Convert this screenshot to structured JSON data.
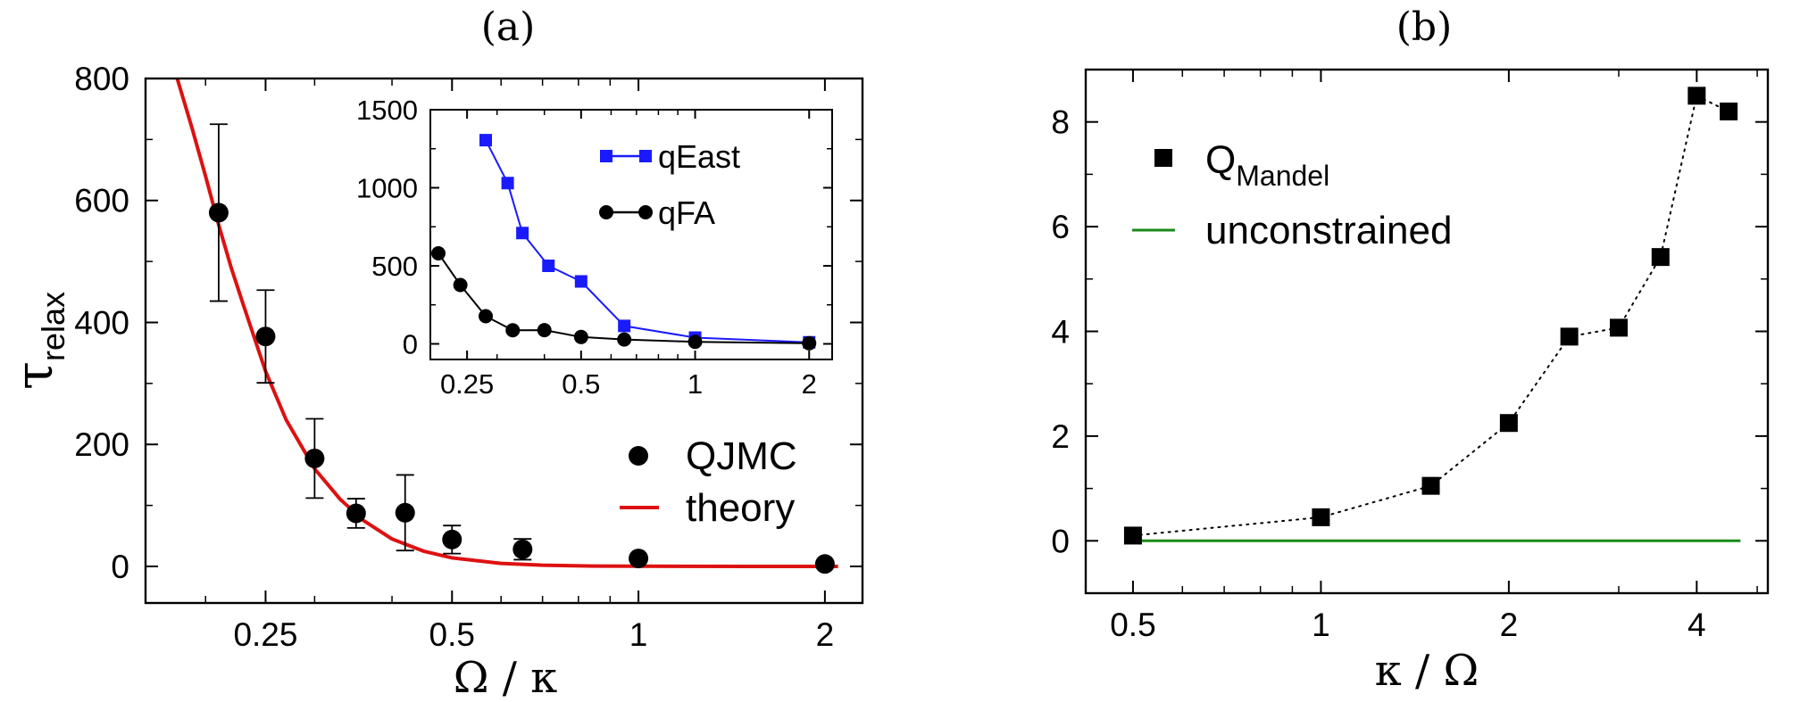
{
  "chart_data": [
    {
      "id": "a",
      "panel_label": "(a)",
      "type": "scatter",
      "x_scale": "log",
      "xlabel": "Ω / κ",
      "ylabel": "τ",
      "ylabel_sub": "relax",
      "xlim": [
        0.16,
        2.3
      ],
      "ylim": [
        -60,
        800
      ],
      "xticks": [
        {
          "value": 0.25,
          "label": "0.25"
        },
        {
          "value": 0.5,
          "label": "0.5"
        },
        {
          "value": 1,
          "label": "1"
        },
        {
          "value": 2,
          "label": "2"
        }
      ],
      "yticks": [
        {
          "value": 0,
          "label": "0"
        },
        {
          "value": 200,
          "label": "200"
        },
        {
          "value": 400,
          "label": "400"
        },
        {
          "value": 600,
          "label": "600"
        },
        {
          "value": 800,
          "label": "800"
        }
      ],
      "legend_position": "lower-right",
      "series": [
        {
          "name": "QJMC",
          "kind": "points-with-errorbars",
          "color": "#000000",
          "points": [
            {
              "x": 0.21,
              "y": 580,
              "err": 145
            },
            {
              "x": 0.25,
              "y": 377,
              "err": 76
            },
            {
              "x": 0.3,
              "y": 177,
              "err": 65
            },
            {
              "x": 0.35,
              "y": 87,
              "err": 24
            },
            {
              "x": 0.42,
              "y": 88,
              "err": 62
            },
            {
              "x": 0.5,
              "y": 44,
              "err": 23
            },
            {
              "x": 0.65,
              "y": 28,
              "err": 17
            },
            {
              "x": 1.0,
              "y": 13,
              "err": 5
            },
            {
              "x": 2.0,
              "y": 4,
              "err": 3
            }
          ]
        },
        {
          "name": "theory",
          "kind": "line",
          "color": "#dd1111",
          "points": [
            {
              "x": 0.18,
              "y": 800
            },
            {
              "x": 0.19,
              "y": 720
            },
            {
              "x": 0.2,
              "y": 640
            },
            {
              "x": 0.21,
              "y": 560
            },
            {
              "x": 0.22,
              "y": 490
            },
            {
              "x": 0.23,
              "y": 430
            },
            {
              "x": 0.25,
              "y": 320
            },
            {
              "x": 0.27,
              "y": 240
            },
            {
              "x": 0.3,
              "y": 160
            },
            {
              "x": 0.33,
              "y": 110
            },
            {
              "x": 0.36,
              "y": 75
            },
            {
              "x": 0.4,
              "y": 45
            },
            {
              "x": 0.45,
              "y": 25
            },
            {
              "x": 0.5,
              "y": 14
            },
            {
              "x": 0.6,
              "y": 5
            },
            {
              "x": 0.7,
              "y": 2
            },
            {
              "x": 0.85,
              "y": 0.5
            },
            {
              "x": 1.0,
              "y": 0.2
            },
            {
              "x": 1.5,
              "y": 0
            },
            {
              "x": 2.1,
              "y": 0
            }
          ]
        }
      ],
      "inset": {
        "type": "line",
        "x_scale": "log",
        "xlim": [
          0.2,
          2.3
        ],
        "ylim": [
          -100,
          1500
        ],
        "xticks": [
          {
            "value": 0.25,
            "label": "0.25"
          },
          {
            "value": 0.5,
            "label": "0.5"
          },
          {
            "value": 1,
            "label": "1"
          },
          {
            "value": 2,
            "label": "2"
          }
        ],
        "yticks": [
          {
            "value": 0,
            "label": "0"
          },
          {
            "value": 500,
            "label": "500"
          },
          {
            "value": 1000,
            "label": "1000"
          },
          {
            "value": 1500,
            "label": "1500"
          }
        ],
        "legend_position": "top-right",
        "series": [
          {
            "name": "qEast",
            "marker": "square",
            "color": "#1a1aff",
            "x": [
              0.28,
              0.32,
              0.35,
              0.41,
              0.5,
              0.65,
              1.0,
              2.0
            ],
            "y": [
              1305,
              1030,
              710,
              500,
              400,
              115,
              40,
              10
            ]
          },
          {
            "name": "qFA",
            "marker": "circle",
            "color": "#000000",
            "x": [
              0.21,
              0.24,
              0.28,
              0.33,
              0.4,
              0.5,
              0.65,
              1.0,
              2.0
            ],
            "y": [
              580,
              377,
              177,
              87,
              88,
              44,
              28,
              13,
              4
            ]
          }
        ]
      }
    },
    {
      "id": "b",
      "panel_label": "(b)",
      "type": "line",
      "x_scale": "log",
      "xlabel": "κ / Ω",
      "ylabel": "",
      "xlim": [
        0.42,
        5.2
      ],
      "ylim": [
        -1,
        9
      ],
      "xticks": [
        {
          "value": 0.5,
          "label": "0.5"
        },
        {
          "value": 1,
          "label": "1"
        },
        {
          "value": 2,
          "label": "2"
        },
        {
          "value": 4,
          "label": "4"
        }
      ],
      "yticks": [
        {
          "value": 0,
          "label": "0"
        },
        {
          "value": 2,
          "label": "2"
        },
        {
          "value": 4,
          "label": "4"
        },
        {
          "value": 6,
          "label": "6"
        },
        {
          "value": 8,
          "label": "8"
        }
      ],
      "legend_position": "top-left",
      "series": [
        {
          "name": "Q",
          "name_sub": "Mandel",
          "kind": "square-markers-dotted",
          "color": "#000000",
          "x": [
            0.5,
            1.0,
            1.5,
            2.0,
            2.5,
            3.0,
            3.5,
            4.0,
            4.5
          ],
          "y": [
            0.1,
            0.45,
            1.05,
            2.25,
            3.9,
            4.07,
            5.42,
            8.5,
            8.2
          ]
        },
        {
          "name": "unconstrained",
          "kind": "line",
          "color": "#1a8a1a",
          "x": [
            0.5,
            4.7
          ],
          "y": [
            0,
            0
          ]
        }
      ]
    }
  ]
}
